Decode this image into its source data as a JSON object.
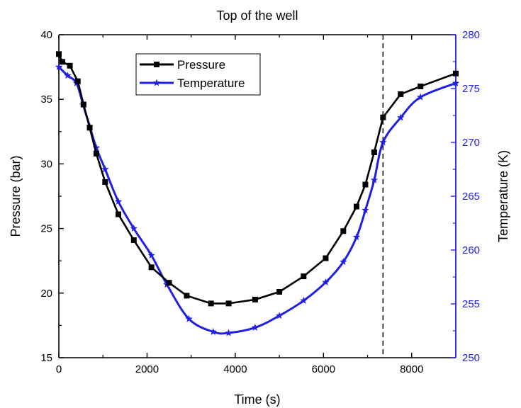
{
  "chart_data": {
    "type": "line",
    "title": "Top of the well",
    "xlabel": "Time (s)",
    "ylabel_left": "Pressure (bar)",
    "ylabel_right": "Temperature (K)",
    "xlim": [
      0,
      9000
    ],
    "ylim_left": [
      15,
      40
    ],
    "ylim_right": [
      250,
      280
    ],
    "x_ticks": [
      "0",
      "2000",
      "4000",
      "6000",
      "8000"
    ],
    "y_left_ticks": [
      "15",
      "20",
      "25",
      "30",
      "35",
      "40"
    ],
    "y_right_ticks": [
      "250",
      "255",
      "260",
      "265",
      "270",
      "275",
      "280"
    ],
    "vertical_reference_x": 7350,
    "legend_position": "top-left",
    "grid": false,
    "series": [
      {
        "name": "Pressure",
        "axis": "left",
        "color": "#000000",
        "marker": "square",
        "x": [
          0,
          80,
          250,
          430,
          560,
          700,
          850,
          1050,
          1350,
          1700,
          2100,
          2500,
          2900,
          3450,
          3850,
          4450,
          5000,
          5550,
          6050,
          6450,
          6750,
          6950,
          7150,
          7350,
          7750,
          8200,
          9000
        ],
        "y": [
          38.5,
          37.9,
          37.6,
          36.4,
          34.6,
          32.8,
          30.8,
          28.6,
          26.1,
          24.1,
          22.0,
          20.8,
          19.8,
          19.2,
          19.2,
          19.5,
          20.1,
          21.3,
          22.7,
          24.8,
          26.7,
          28.4,
          30.9,
          33.6,
          35.4,
          36.0,
          37.0
        ]
      },
      {
        "name": "Temperature",
        "axis": "right",
        "color": "#1f1fe6",
        "marker": "star",
        "x": [
          0,
          200,
          400,
          550,
          700,
          850,
          1050,
          1350,
          1700,
          2100,
          2450,
          2950,
          3500,
          3850,
          4450,
          5000,
          5550,
          6050,
          6450,
          6750,
          6950,
          7150,
          7350,
          7750,
          8200,
          9000
        ],
        "y": [
          277.0,
          276.2,
          275.5,
          273.5,
          271.5,
          269.5,
          267.5,
          264.5,
          262.0,
          259.5,
          256.8,
          253.6,
          252.4,
          252.3,
          252.8,
          253.9,
          255.3,
          257.0,
          258.9,
          261.2,
          263.7,
          266.5,
          270.0,
          272.3,
          274.2,
          275.5
        ]
      }
    ]
  }
}
